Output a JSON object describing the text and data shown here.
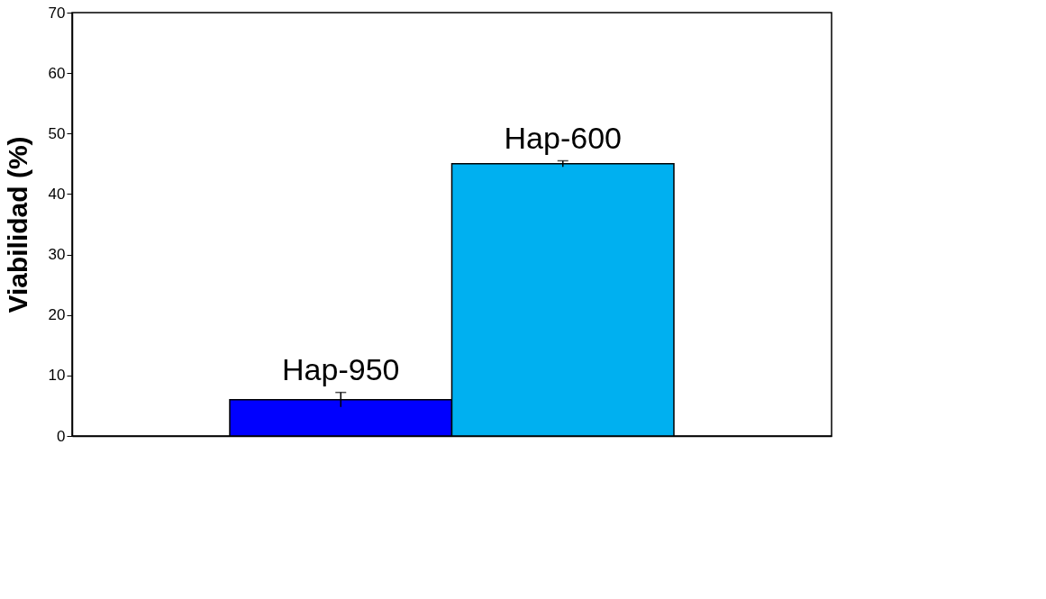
{
  "chart_data": {
    "type": "bar",
    "ylabel": "Viabilidad (%)",
    "categories": [
      null
    ],
    "series": [
      {
        "name": "Hap-950",
        "color": "#0000ff",
        "values": [
          6
        ],
        "errors": [
          1.2
        ]
      },
      {
        "name": "Hap-600",
        "color": "#00b0f0",
        "values": [
          45
        ],
        "errors": [
          0.5
        ]
      }
    ],
    "ylim": [
      0,
      70
    ],
    "yticks": [
      0,
      10,
      20,
      30,
      40,
      50,
      60,
      70
    ],
    "grid": false,
    "legend": false,
    "tick_labels": "y"
  }
}
